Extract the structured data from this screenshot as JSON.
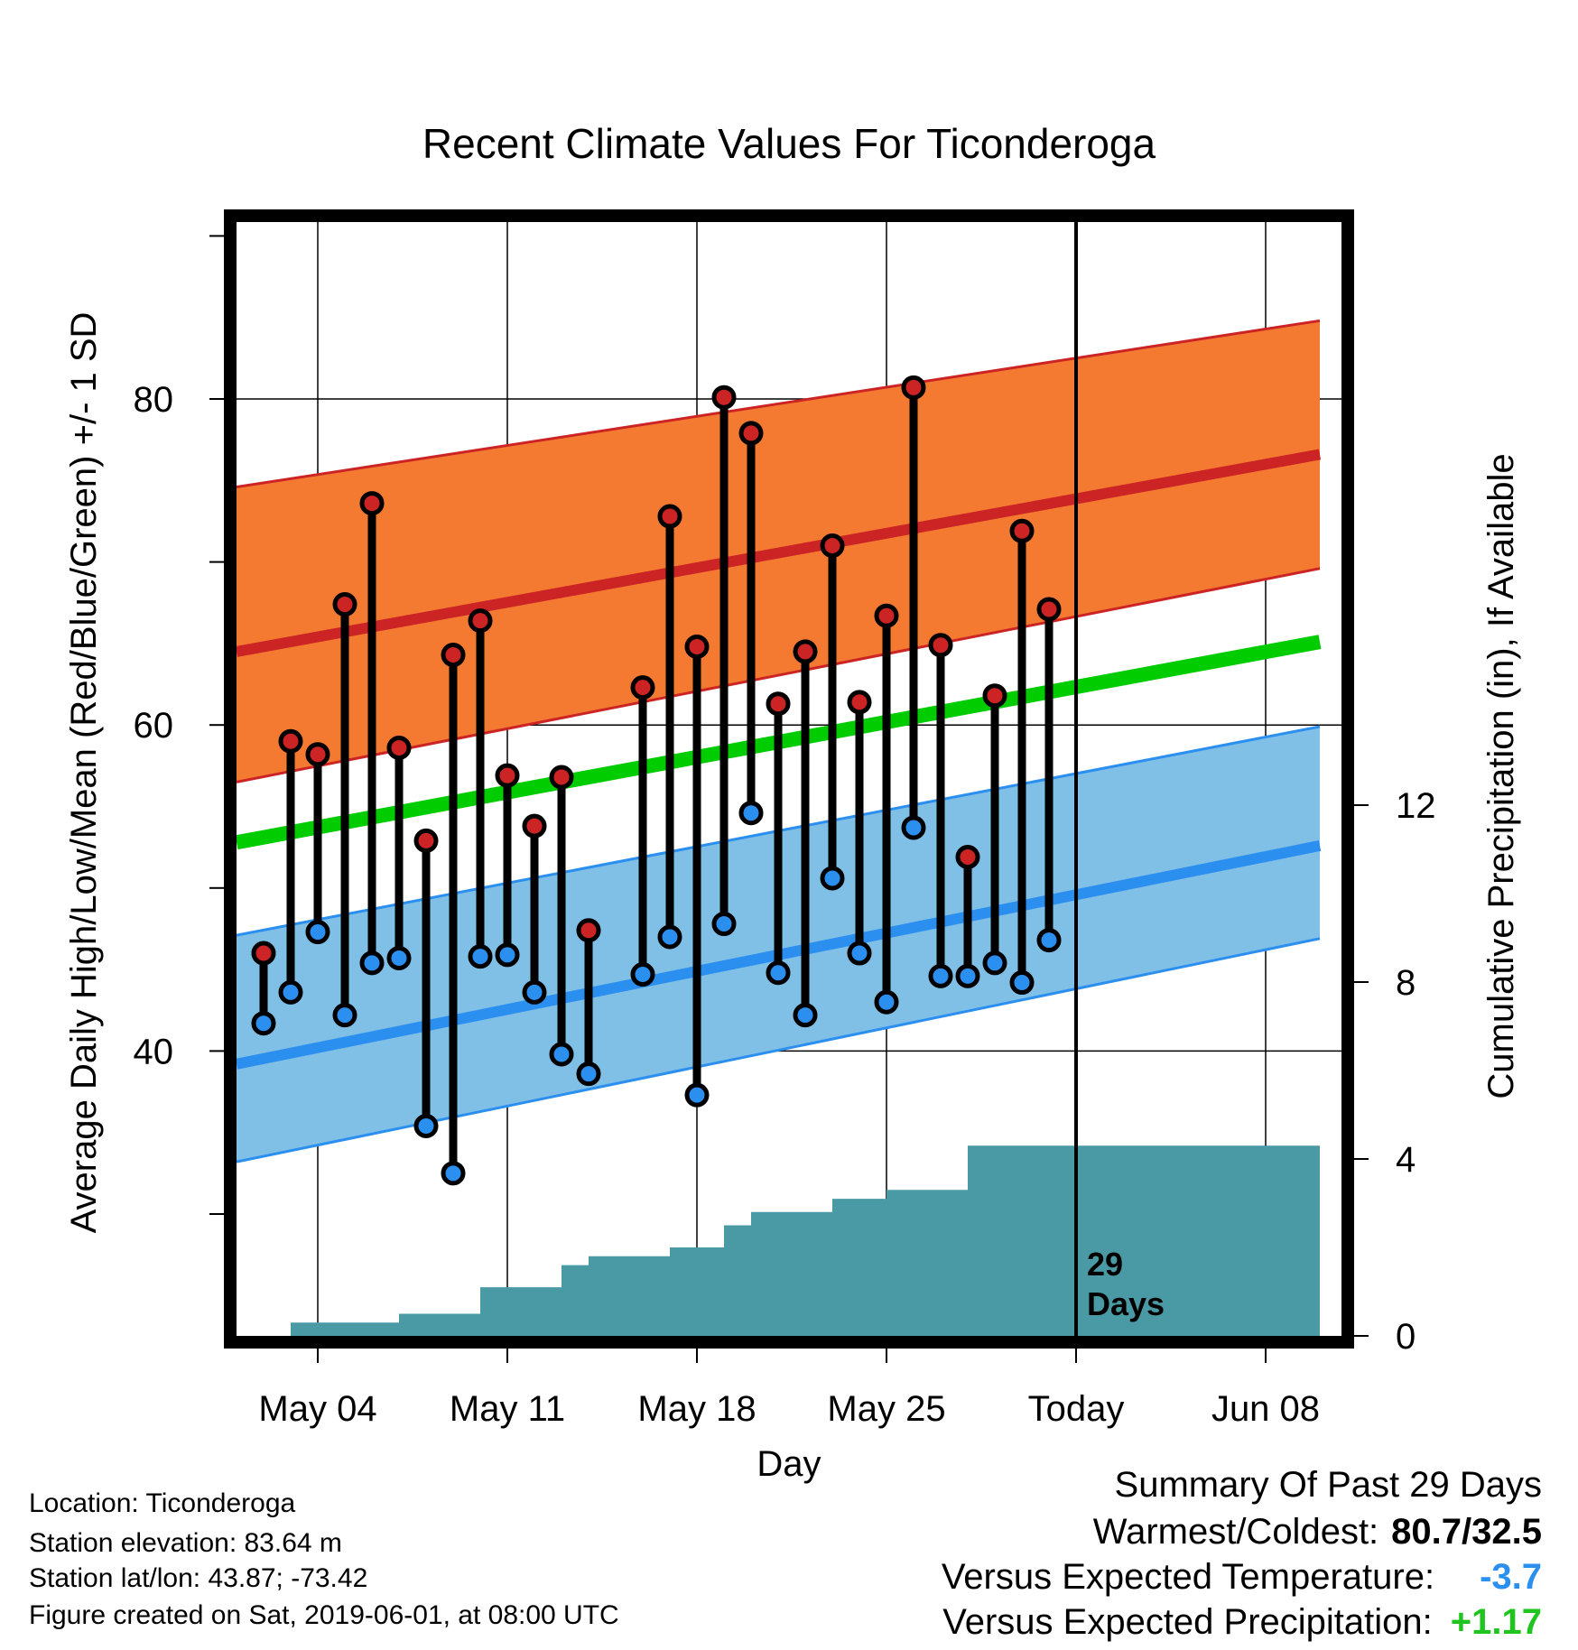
{
  "chart_data": {
    "type": "line",
    "title": "Recent Climate Values For Ticonderoga",
    "xlabel": "Day",
    "ylabel": "Average Daily High/Low/Mean (Red/Blue/Green) +/- 1 SD",
    "y2label": "Cumulative Precipitation (in), If Available",
    "x_tick_labels": [
      "May 04",
      "May 11",
      "May 18",
      "May 25",
      "Today",
      "Jun 08"
    ],
    "y_tick_labels": [
      "40",
      "60",
      "80"
    ],
    "y2_tick_labels": [
      "0",
      "4",
      "8",
      "12"
    ],
    "ylim": [
      23,
      93
    ],
    "y2lim": [
      0,
      25
    ],
    "xlim": [
      "2019-05-01",
      "2019-06-10"
    ],
    "grid": true,
    "today_marker": {
      "date": "2019-06-01",
      "label_number": "29",
      "label_text": "Days"
    },
    "normal_high": {
      "start": 64.5,
      "end": 76.6,
      "sd_upper_start": 74.6,
      "sd_upper_end": 84.8,
      "sd_lower_start": 56.5,
      "sd_lower_end": 69.6
    },
    "normal_mean": {
      "start": 52.8,
      "end": 65.1
    },
    "normal_low": {
      "start": 39.2,
      "end": 52.6,
      "sd_upper_start": 47.1,
      "sd_upper_end": 59.9,
      "sd_lower_start": 33.2,
      "sd_lower_end": 46.9
    },
    "daily": {
      "dates": [
        "2019-05-02",
        "2019-05-03",
        "2019-05-04",
        "2019-05-05",
        "2019-05-06",
        "2019-05-07",
        "2019-05-08",
        "2019-05-09",
        "2019-05-10",
        "2019-05-11",
        "2019-05-12",
        "2019-05-13",
        "2019-05-14",
        "2019-05-16",
        "2019-05-17",
        "2019-05-18",
        "2019-05-19",
        "2019-05-20",
        "2019-05-21",
        "2019-05-22",
        "2019-05-23",
        "2019-05-24",
        "2019-05-25",
        "2019-05-26",
        "2019-05-27",
        "2019-05-28",
        "2019-05-29",
        "2019-05-30",
        "2019-05-31"
      ],
      "high": [
        46.0,
        59.0,
        58.2,
        67.4,
        73.6,
        58.6,
        52.9,
        64.3,
        66.4,
        56.9,
        53.8,
        56.8,
        47.4,
        62.3,
        72.8,
        64.8,
        80.1,
        77.9,
        61.3,
        64.5,
        71.0,
        61.4,
        66.7,
        80.7,
        64.9,
        51.9,
        61.8,
        71.9,
        67.1
      ],
      "low": [
        41.7,
        43.6,
        47.3,
        42.2,
        45.4,
        45.7,
        35.4,
        32.5,
        45.8,
        45.9,
        43.6,
        39.8,
        38.6,
        44.7,
        47.0,
        37.3,
        47.8,
        54.6,
        44.8,
        42.2,
        50.6,
        46.0,
        43.0,
        53.7,
        44.6,
        44.6,
        45.4,
        44.2,
        46.8
      ]
    },
    "cumulative_precipitation": {
      "step_dates": [
        "2019-05-01",
        "2019-05-03",
        "2019-05-06",
        "2019-05-07",
        "2019-05-09",
        "2019-05-10",
        "2019-05-11",
        "2019-05-12",
        "2019-05-13",
        "2019-05-14",
        "2019-05-15",
        "2019-05-16",
        "2019-05-17",
        "2019-05-18",
        "2019-05-19",
        "2019-05-20",
        "2019-05-21",
        "2019-05-22",
        "2019-05-23",
        "2019-05-24",
        "2019-05-25",
        "2019-05-26",
        "2019-05-27",
        "2019-05-28",
        "2019-06-10"
      ],
      "values": [
        0.0,
        0.3,
        0.3,
        0.5,
        0.5,
        1.1,
        1.1,
        1.1,
        1.6,
        1.8,
        1.8,
        1.8,
        2.0,
        2.0,
        2.5,
        2.8,
        2.8,
        2.8,
        3.1,
        3.1,
        3.3,
        3.3,
        3.3,
        4.3,
        4.3
      ]
    },
    "colors": {
      "high_band": "#f47a32",
      "high_line": "#cc2424",
      "mean_line": "#00cc00",
      "low_band": "#80bfe6",
      "low_line": "#2b8ff0",
      "precip": "#4a9aa5",
      "high_marker": "#cc2424",
      "low_marker": "#2b8ff0"
    }
  },
  "station_info": {
    "location": "Location: Ticonderoga",
    "elevation": "Station elevation: 83.64 m",
    "latlon": "Station lat/lon: 43.87; -73.42",
    "created": "Figure created on Sat, 2019-06-01, at 08:00 UTC"
  },
  "summary": {
    "heading": "Summary Of Past 29 Days",
    "warmest_coldest_label": "Warmest/Coldest:",
    "warmest_coldest_value": "80.7/32.5",
    "temp_label": "Versus Expected Temperature:",
    "temp_value": "-3.7",
    "precip_label": "Versus Expected Precipitation:",
    "precip_value": "+1.17"
  }
}
